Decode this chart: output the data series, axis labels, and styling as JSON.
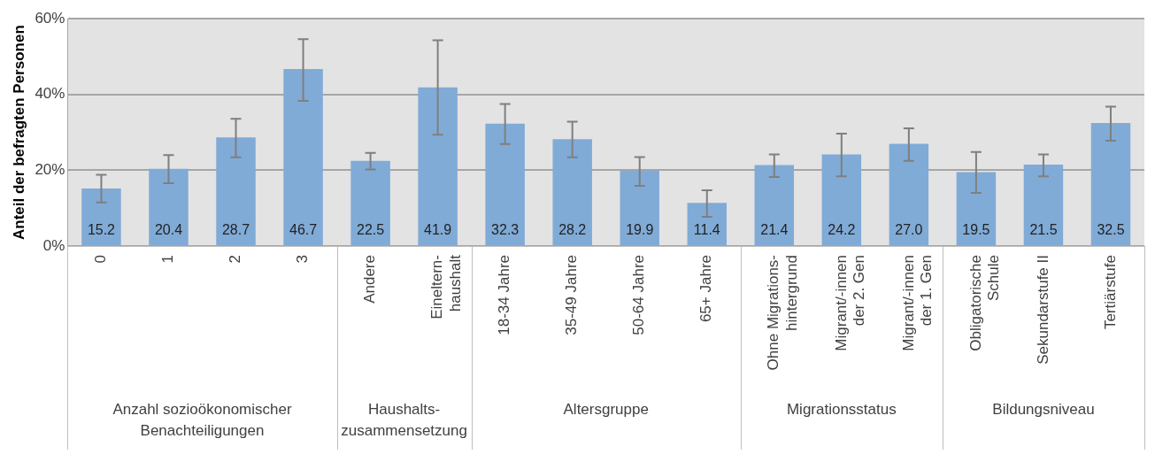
{
  "chart_data": {
    "type": "bar",
    "ylabel": "Anteil der befragten Personen",
    "categories": [
      "0",
      "1",
      "2",
      "3",
      "Andere",
      "Eineltern-\nhaushalt",
      "18-34 Jahre",
      "35-49 Jahre",
      "50-64 Jahre",
      "65+ Jahre",
      "Ohne Migrations-\nhintergrund",
      "Migrant/-innen\nder 2. Gen",
      "Migrant/-innen\nder 1. Gen",
      "Obligatorische\nSchule",
      "Sekundarstufe II",
      "Tertiärstufe"
    ],
    "values": [
      15.2,
      20.4,
      28.7,
      46.7,
      22.5,
      41.9,
      32.3,
      28.2,
      19.9,
      11.4,
      21.4,
      24.2,
      27.0,
      19.5,
      21.5,
      32.5
    ],
    "value_labels": [
      "15.2",
      "20.4",
      "28.7",
      "46.7",
      "22.5",
      "41.9",
      "32.3",
      "28.2",
      "19.9",
      "11.4",
      "21.4",
      "24.2",
      "27.0",
      "19.5",
      "21.5",
      "32.5"
    ],
    "errors": [
      [
        11.5,
        18.8
      ],
      [
        16.6,
        24.0
      ],
      [
        23.4,
        33.6
      ],
      [
        38.3,
        54.6
      ],
      [
        20.2,
        24.6
      ],
      [
        29.4,
        54.3
      ],
      [
        26.9,
        37.5
      ],
      [
        23.4,
        32.8
      ],
      [
        15.9,
        23.5
      ],
      [
        7.7,
        14.7
      ],
      [
        18.2,
        24.2
      ],
      [
        18.4,
        29.7
      ],
      [
        22.5,
        31.1
      ],
      [
        14.0,
        24.8
      ],
      [
        18.4,
        24.2
      ],
      [
        27.8,
        36.8
      ]
    ],
    "color": "#80abd7",
    "ylim": [
      0,
      60
    ],
    "yticks": [
      {
        "value": 0,
        "label": "0%"
      },
      {
        "value": 20,
        "label": "20%"
      },
      {
        "value": 40,
        "label": "40%"
      },
      {
        "value": 60,
        "label": "60%"
      }
    ],
    "grid": "y",
    "annotations": [
      "Anzahl sozioökonomischer\nBenachteiligungen",
      "Haushalts-\nzusammensetzung",
      "Altersgruppe",
      "Migrationsstatus",
      "Bildungsniveau"
    ]
  }
}
